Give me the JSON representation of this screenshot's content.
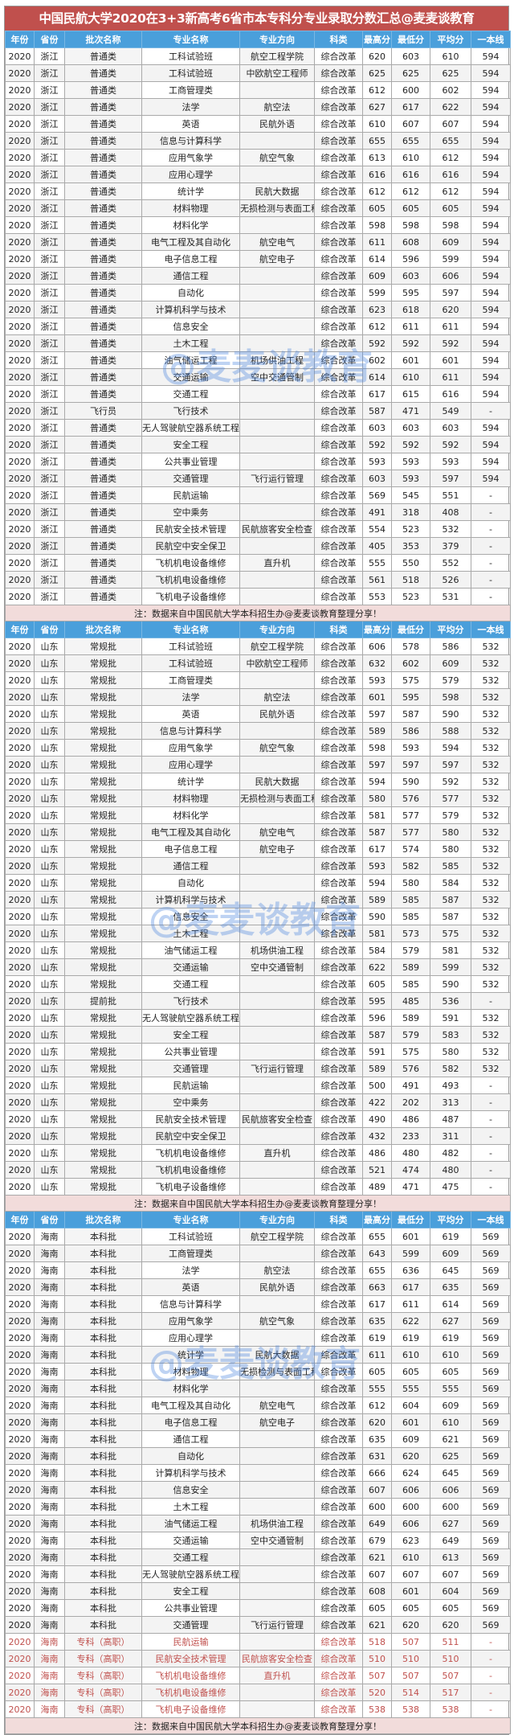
{
  "title": "中国民航大学2020在3+3新高考6省市本专科分专业录取分数汇总@麦麦谈教育",
  "watermark": "@麦麦谈教育",
  "headers": [
    "年份",
    "省份",
    "批次名称",
    "专业名称",
    "专业方向",
    "科类",
    "最高分",
    "最低分",
    "平均分",
    "一本线"
  ],
  "note": "注：数据来自中国民航大学本科招生办@麦麦谈教育整理分享！",
  "colors": {
    "title_bg": "#c0504d",
    "header_bg": "#4a9fdb",
    "note_bg": "#f2dcdb",
    "zhuanke_text": "#c0504d"
  },
  "sections": [
    {
      "province": "浙江",
      "rows": [
        [
          "2020",
          "浙江",
          "普通类",
          "工科试验班",
          "航空工程学院",
          "综合改革",
          "620",
          "603",
          "610",
          "594"
        ],
        [
          "2020",
          "浙江",
          "普通类",
          "工科试验班",
          "中欧航空工程师",
          "综合改革",
          "625",
          "625",
          "625",
          "594"
        ],
        [
          "2020",
          "浙江",
          "普通类",
          "工商管理类",
          "",
          "综合改革",
          "612",
          "600",
          "602",
          "594"
        ],
        [
          "2020",
          "浙江",
          "普通类",
          "法学",
          "航空法",
          "综合改革",
          "627",
          "617",
          "622",
          "594"
        ],
        [
          "2020",
          "浙江",
          "普通类",
          "英语",
          "民航外语",
          "综合改革",
          "610",
          "607",
          "607",
          "594"
        ],
        [
          "2020",
          "浙江",
          "普通类",
          "信息与计算科学",
          "",
          "综合改革",
          "655",
          "655",
          "655",
          "594"
        ],
        [
          "2020",
          "浙江",
          "普通类",
          "应用气象学",
          "航空气象",
          "综合改革",
          "613",
          "610",
          "612",
          "594"
        ],
        [
          "2020",
          "浙江",
          "普通类",
          "应用心理学",
          "",
          "综合改革",
          "616",
          "616",
          "616",
          "594"
        ],
        [
          "2020",
          "浙江",
          "普通类",
          "统计学",
          "民航大数据",
          "综合改革",
          "612",
          "612",
          "612",
          "594"
        ],
        [
          "2020",
          "浙江",
          "普通类",
          "材料物理",
          "无损检测与表面工程",
          "综合改革",
          "605",
          "605",
          "605",
          "594"
        ],
        [
          "2020",
          "浙江",
          "普通类",
          "材料化学",
          "",
          "综合改革",
          "598",
          "598",
          "598",
          "594"
        ],
        [
          "2020",
          "浙江",
          "普通类",
          "电气工程及其自动化",
          "航空电气",
          "综合改革",
          "611",
          "608",
          "609",
          "594"
        ],
        [
          "2020",
          "浙江",
          "普通类",
          "电子信息工程",
          "航空电子",
          "综合改革",
          "614",
          "596",
          "599",
          "594"
        ],
        [
          "2020",
          "浙江",
          "普通类",
          "通信工程",
          "",
          "综合改革",
          "609",
          "603",
          "606",
          "594"
        ],
        [
          "2020",
          "浙江",
          "普通类",
          "自动化",
          "",
          "综合改革",
          "599",
          "595",
          "597",
          "594"
        ],
        [
          "2020",
          "浙江",
          "普通类",
          "计算机科学与技术",
          "",
          "综合改革",
          "623",
          "618",
          "620",
          "594"
        ],
        [
          "2020",
          "浙江",
          "普通类",
          "信息安全",
          "",
          "综合改革",
          "612",
          "611",
          "611",
          "594"
        ],
        [
          "2020",
          "浙江",
          "普通类",
          "土木工程",
          "",
          "综合改革",
          "592",
          "592",
          "592",
          "594"
        ],
        [
          "2020",
          "浙江",
          "普通类",
          "油气储运工程",
          "机场供油工程",
          "综合改革",
          "602",
          "601",
          "601",
          "594"
        ],
        [
          "2020",
          "浙江",
          "普通类",
          "交通运输",
          "空中交通管制",
          "综合改革",
          "614",
          "610",
          "611",
          "594"
        ],
        [
          "2020",
          "浙江",
          "普通类",
          "交通工程",
          "",
          "综合改革",
          "617",
          "615",
          "616",
          "594"
        ],
        [
          "2020",
          "浙江",
          "飞行员",
          "飞行技术",
          "",
          "综合改革",
          "587",
          "471",
          "549",
          "-"
        ],
        [
          "2020",
          "浙江",
          "普通类",
          "无人驾驶航空器系统工程",
          "",
          "综合改革",
          "603",
          "603",
          "603",
          "594"
        ],
        [
          "2020",
          "浙江",
          "普通类",
          "安全工程",
          "",
          "综合改革",
          "592",
          "592",
          "592",
          "594"
        ],
        [
          "2020",
          "浙江",
          "普通类",
          "公共事业管理",
          "",
          "综合改革",
          "593",
          "593",
          "593",
          "594"
        ],
        [
          "2020",
          "浙江",
          "普通类",
          "交通管理",
          "飞行运行管理",
          "综合改革",
          "603",
          "593",
          "597",
          "594"
        ],
        [
          "2020",
          "浙江",
          "普通类",
          "民航运输",
          "",
          "综合改革",
          "569",
          "545",
          "551",
          "-"
        ],
        [
          "2020",
          "浙江",
          "普通类",
          "空中乘务",
          "",
          "综合改革",
          "491",
          "318",
          "408",
          "-"
        ],
        [
          "2020",
          "浙江",
          "普通类",
          "民航安全技术管理",
          "民航旅客安全检查",
          "综合改革",
          "554",
          "523",
          "532",
          "-"
        ],
        [
          "2020",
          "浙江",
          "普通类",
          "民航空中安全保卫",
          "",
          "综合改革",
          "405",
          "353",
          "379",
          "-"
        ],
        [
          "2020",
          "浙江",
          "普通类",
          "飞机机电设备维修",
          "直升机",
          "综合改革",
          "555",
          "550",
          "552",
          "-"
        ],
        [
          "2020",
          "浙江",
          "普通类",
          "飞机机电设备维修",
          "",
          "综合改革",
          "561",
          "518",
          "526",
          "-"
        ],
        [
          "2020",
          "浙江",
          "普通类",
          "飞机电子设备维修",
          "",
          "综合改革",
          "553",
          "523",
          "531",
          "-"
        ]
      ]
    },
    {
      "province": "山东",
      "rows": [
        [
          "2020",
          "山东",
          "常规批",
          "工科试验班",
          "航空工程学院",
          "综合改革",
          "606",
          "578",
          "586",
          "532"
        ],
        [
          "2020",
          "山东",
          "常规批",
          "工科试验班",
          "中欧航空工程师",
          "综合改革",
          "632",
          "602",
          "609",
          "532"
        ],
        [
          "2020",
          "山东",
          "常规批",
          "工商管理类",
          "",
          "综合改革",
          "593",
          "575",
          "579",
          "532"
        ],
        [
          "2020",
          "山东",
          "常规批",
          "法学",
          "航空法",
          "综合改革",
          "601",
          "595",
          "598",
          "532"
        ],
        [
          "2020",
          "山东",
          "常规批",
          "英语",
          "民航外语",
          "综合改革",
          "597",
          "587",
          "590",
          "532"
        ],
        [
          "2020",
          "山东",
          "常规批",
          "信息与计算科学",
          "",
          "综合改革",
          "589",
          "586",
          "588",
          "532"
        ],
        [
          "2020",
          "山东",
          "常规批",
          "应用气象学",
          "航空气象",
          "综合改革",
          "598",
          "593",
          "594",
          "532"
        ],
        [
          "2020",
          "山东",
          "常规批",
          "应用心理学",
          "",
          "综合改革",
          "597",
          "597",
          "597",
          "532"
        ],
        [
          "2020",
          "山东",
          "常规批",
          "统计学",
          "民航大数据",
          "综合改革",
          "594",
          "590",
          "592",
          "532"
        ],
        [
          "2020",
          "山东",
          "常规批",
          "材料物理",
          "无损检测与表面工程",
          "综合改革",
          "580",
          "576",
          "577",
          "532"
        ],
        [
          "2020",
          "山东",
          "常规批",
          "材料化学",
          "",
          "综合改革",
          "581",
          "577",
          "579",
          "532"
        ],
        [
          "2020",
          "山东",
          "常规批",
          "电气工程及其自动化",
          "航空电气",
          "综合改革",
          "587",
          "577",
          "580",
          "532"
        ],
        [
          "2020",
          "山东",
          "常规批",
          "电子信息工程",
          "航空电子",
          "综合改革",
          "617",
          "574",
          "580",
          "532"
        ],
        [
          "2020",
          "山东",
          "常规批",
          "通信工程",
          "",
          "综合改革",
          "593",
          "582",
          "585",
          "532"
        ],
        [
          "2020",
          "山东",
          "常规批",
          "自动化",
          "",
          "综合改革",
          "594",
          "580",
          "584",
          "532"
        ],
        [
          "2020",
          "山东",
          "常规批",
          "计算机科学与技术",
          "",
          "综合改革",
          "589",
          "585",
          "587",
          "532"
        ],
        [
          "2020",
          "山东",
          "常规批",
          "信息安全",
          "",
          "综合改革",
          "590",
          "585",
          "587",
          "532"
        ],
        [
          "2020",
          "山东",
          "常规批",
          "土木工程",
          "",
          "综合改革",
          "581",
          "573",
          "575",
          "532"
        ],
        [
          "2020",
          "山东",
          "常规批",
          "油气储运工程",
          "机场供油工程",
          "综合改革",
          "584",
          "579",
          "581",
          "532"
        ],
        [
          "2020",
          "山东",
          "常规批",
          "交通运输",
          "空中交通管制",
          "综合改革",
          "622",
          "589",
          "599",
          "532"
        ],
        [
          "2020",
          "山东",
          "常规批",
          "交通工程",
          "",
          "综合改革",
          "605",
          "585",
          "590",
          "532"
        ],
        [
          "2020",
          "山东",
          "提前批",
          "飞行技术",
          "",
          "综合改革",
          "595",
          "485",
          "536",
          "-"
        ],
        [
          "2020",
          "山东",
          "常规批",
          "无人驾驶航空器系统工程",
          "",
          "综合改革",
          "596",
          "589",
          "591",
          "532"
        ],
        [
          "2020",
          "山东",
          "常规批",
          "安全工程",
          "",
          "综合改革",
          "587",
          "579",
          "583",
          "532"
        ],
        [
          "2020",
          "山东",
          "常规批",
          "公共事业管理",
          "",
          "综合改革",
          "591",
          "575",
          "580",
          "532"
        ],
        [
          "2020",
          "山东",
          "常规批",
          "交通管理",
          "飞行运行管理",
          "综合改革",
          "589",
          "576",
          "582",
          "532"
        ],
        [
          "2020",
          "山东",
          "常规批",
          "民航运输",
          "",
          "综合改革",
          "500",
          "491",
          "493",
          "-"
        ],
        [
          "2020",
          "山东",
          "常规批",
          "空中乘务",
          "",
          "综合改革",
          "422",
          "202",
          "313",
          "-"
        ],
        [
          "2020",
          "山东",
          "常规批",
          "民航安全技术管理",
          "民航旅客安全检查",
          "综合改革",
          "490",
          "486",
          "487",
          "-"
        ],
        [
          "2020",
          "山东",
          "常规批",
          "民航空中安全保卫",
          "",
          "综合改革",
          "432",
          "233",
          "311",
          "-"
        ],
        [
          "2020",
          "山东",
          "常规批",
          "飞机机电设备维修",
          "直升机",
          "综合改革",
          "486",
          "480",
          "482",
          "-"
        ],
        [
          "2020",
          "山东",
          "常规批",
          "飞机机电设备维修",
          "",
          "综合改革",
          "521",
          "474",
          "480",
          "-"
        ],
        [
          "2020",
          "山东",
          "常规批",
          "飞机电子设备维修",
          "",
          "综合改革",
          "489",
          "471",
          "475",
          "-"
        ]
      ]
    },
    {
      "province": "海南",
      "rows": [
        [
          "2020",
          "海南",
          "本科批",
          "工科试验班",
          "航空工程学院",
          "综合改革",
          "655",
          "601",
          "619",
          "569"
        ],
        [
          "2020",
          "海南",
          "本科批",
          "工商管理类",
          "",
          "综合改革",
          "643",
          "599",
          "609",
          "569"
        ],
        [
          "2020",
          "海南",
          "本科批",
          "法学",
          "航空法",
          "综合改革",
          "655",
          "636",
          "645",
          "569"
        ],
        [
          "2020",
          "海南",
          "本科批",
          "英语",
          "民航外语",
          "综合改革",
          "663",
          "617",
          "635",
          "569"
        ],
        [
          "2020",
          "海南",
          "本科批",
          "信息与计算科学",
          "",
          "综合改革",
          "617",
          "611",
          "614",
          "569"
        ],
        [
          "2020",
          "海南",
          "本科批",
          "应用气象学",
          "航空气象",
          "综合改革",
          "635",
          "622",
          "627",
          "569"
        ],
        [
          "2020",
          "海南",
          "本科批",
          "应用心理学",
          "",
          "综合改革",
          "619",
          "619",
          "619",
          "569"
        ],
        [
          "2020",
          "海南",
          "本科批",
          "统计学",
          "民航大数据",
          "综合改革",
          "611",
          "610",
          "610",
          "569"
        ],
        [
          "2020",
          "海南",
          "本科批",
          "材料物理",
          "无损检测与表面工程",
          "综合改革",
          "605",
          "605",
          "605",
          "569"
        ],
        [
          "2020",
          "海南",
          "本科批",
          "材料化学",
          "",
          "综合改革",
          "555",
          "555",
          "555",
          "569"
        ],
        [
          "2020",
          "海南",
          "本科批",
          "电气工程及其自动化",
          "航空电气",
          "综合改革",
          "612",
          "604",
          "609",
          "569"
        ],
        [
          "2020",
          "海南",
          "本科批",
          "电子信息工程",
          "航空电子",
          "综合改革",
          "620",
          "601",
          "610",
          "569"
        ],
        [
          "2020",
          "海南",
          "本科批",
          "通信工程",
          "",
          "综合改革",
          "635",
          "609",
          "621",
          "569"
        ],
        [
          "2020",
          "海南",
          "本科批",
          "自动化",
          "",
          "综合改革",
          "631",
          "620",
          "625",
          "569"
        ],
        [
          "2020",
          "海南",
          "本科批",
          "计算机科学与技术",
          "",
          "综合改革",
          "666",
          "624",
          "645",
          "569"
        ],
        [
          "2020",
          "海南",
          "本科批",
          "信息安全",
          "",
          "综合改革",
          "607",
          "606",
          "606",
          "569"
        ],
        [
          "2020",
          "海南",
          "本科批",
          "土木工程",
          "",
          "综合改革",
          "600",
          "600",
          "600",
          "569"
        ],
        [
          "2020",
          "海南",
          "本科批",
          "油气储运工程",
          "机场供油工程",
          "综合改革",
          "649",
          "606",
          "627",
          "569"
        ],
        [
          "2020",
          "海南",
          "本科批",
          "交通运输",
          "空中交通管制",
          "综合改革",
          "679",
          "623",
          "649",
          "569"
        ],
        [
          "2020",
          "海南",
          "本科批",
          "交通工程",
          "",
          "综合改革",
          "621",
          "610",
          "613",
          "569"
        ],
        [
          "2020",
          "海南",
          "本科批",
          "无人驾驶航空器系统工程",
          "",
          "综合改革",
          "607",
          "607",
          "607",
          "569"
        ],
        [
          "2020",
          "海南",
          "本科批",
          "安全工程",
          "",
          "综合改革",
          "608",
          "601",
          "604",
          "569"
        ],
        [
          "2020",
          "海南",
          "本科批",
          "公共事业管理",
          "",
          "综合改革",
          "605",
          "605",
          "605",
          "569"
        ],
        [
          "2020",
          "海南",
          "本科批",
          "交通管理",
          "飞行运行管理",
          "综合改革",
          "621",
          "620",
          "620",
          "569"
        ],
        [
          "2020",
          "海南",
          "专科（高职）",
          "民航运输",
          "",
          "综合改革",
          "518",
          "507",
          "511",
          "-"
        ],
        [
          "2020",
          "海南",
          "专科（高职）",
          "民航安全技术管理",
          "民航旅客安全检查",
          "综合改革",
          "510",
          "510",
          "510",
          "-"
        ],
        [
          "2020",
          "海南",
          "专科（高职）",
          "飞机机电设备维修",
          "直升机",
          "综合改革",
          "507",
          "507",
          "507",
          "-"
        ],
        [
          "2020",
          "海南",
          "专科（高职）",
          "飞机机电设备维修",
          "",
          "综合改革",
          "520",
          "514",
          "517",
          "-"
        ],
        [
          "2020",
          "海南",
          "专科（高职）",
          "飞机电子设备维修",
          "",
          "综合改革",
          "538",
          "538",
          "538",
          "-"
        ]
      ]
    }
  ]
}
